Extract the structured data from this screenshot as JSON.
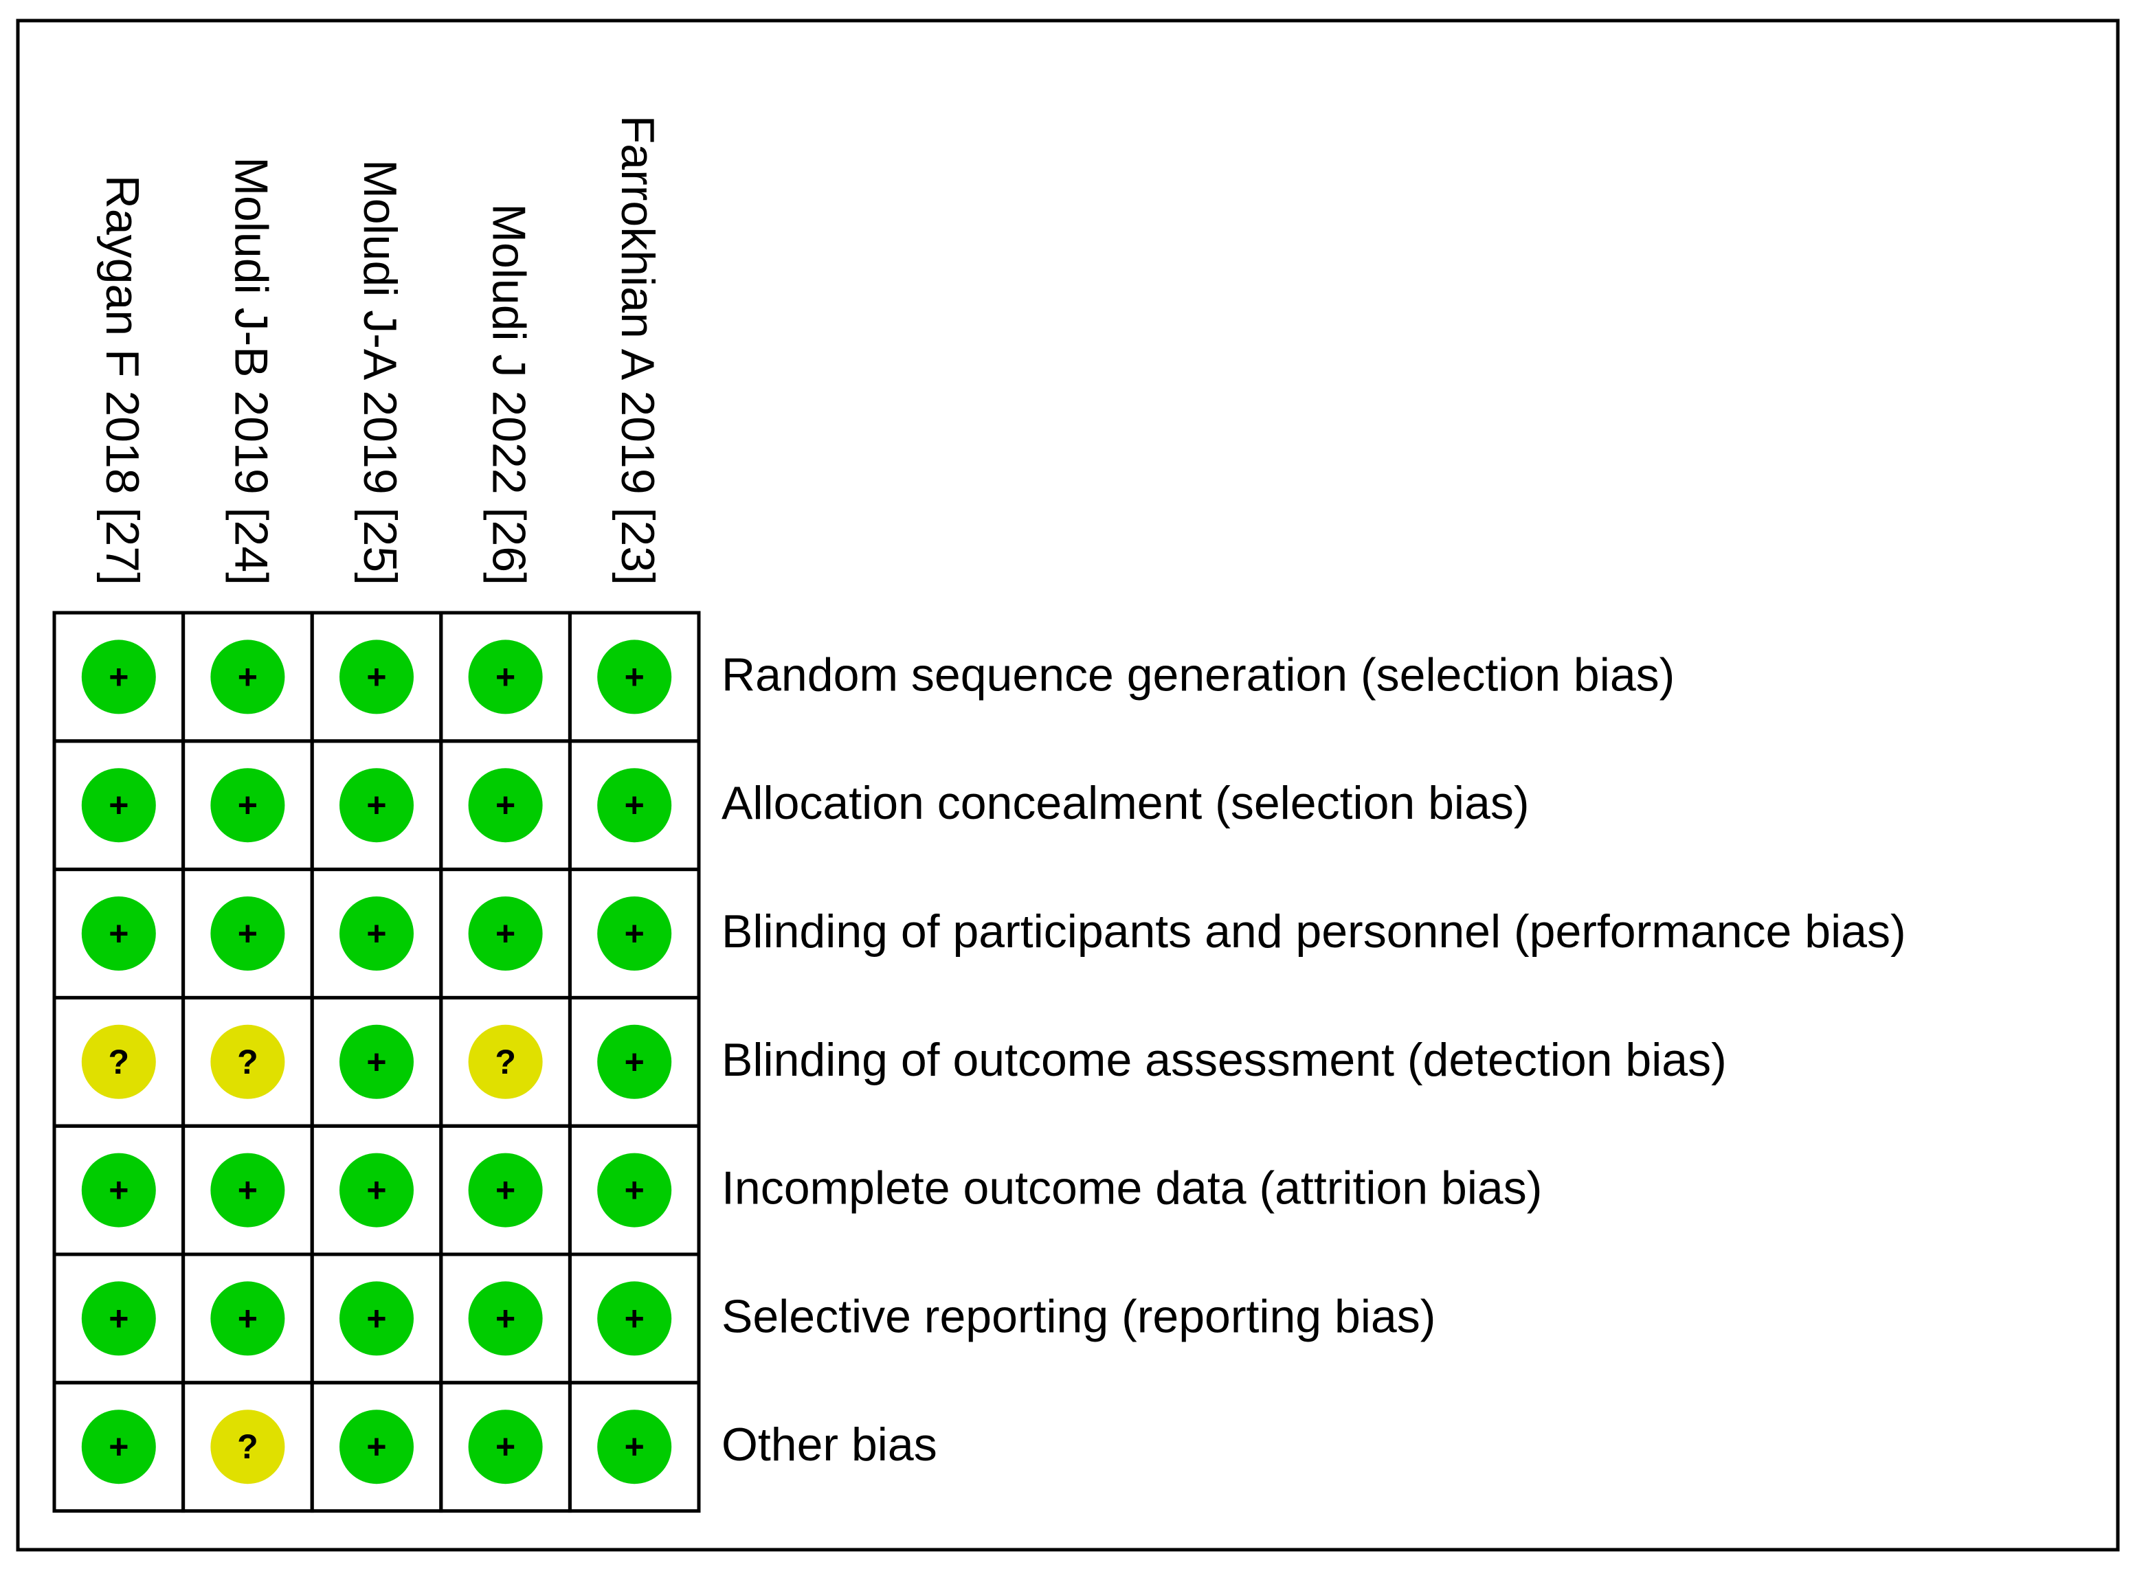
{
  "columns": [
    "Raygan F 2018 [27]",
    "Moludi J-B 2019 [24]",
    "Moludi J-A 2019 [25]",
    "Moludi J 2022 [26]",
    "Farrokhian A 2019 [23]"
  ],
  "rows": [
    {
      "label": "Random sequence generation (selection bias)",
      "cells": [
        {
          "symbol": "+",
          "color": "#00cc00"
        },
        {
          "symbol": "+",
          "color": "#00cc00"
        },
        {
          "symbol": "+",
          "color": "#00cc00"
        },
        {
          "symbol": "+",
          "color": "#00cc00"
        },
        {
          "symbol": "+",
          "color": "#00cc00"
        }
      ]
    },
    {
      "label": "Allocation concealment (selection bias)",
      "cells": [
        {
          "symbol": "+",
          "color": "#00cc00"
        },
        {
          "symbol": "+",
          "color": "#00cc00"
        },
        {
          "symbol": "+",
          "color": "#00cc00"
        },
        {
          "symbol": "+",
          "color": "#00cc00"
        },
        {
          "symbol": "+",
          "color": "#00cc00"
        }
      ]
    },
    {
      "label": "Blinding of participants and personnel (performance bias)",
      "cells": [
        {
          "symbol": "+",
          "color": "#00cc00"
        },
        {
          "symbol": "+",
          "color": "#00cc00"
        },
        {
          "symbol": "+",
          "color": "#00cc00"
        },
        {
          "symbol": "+",
          "color": "#00cc00"
        },
        {
          "symbol": "+",
          "color": "#00cc00"
        }
      ]
    },
    {
      "label": "Blinding of outcome assessment (detection bias)",
      "cells": [
        {
          "symbol": "?",
          "color": "#e0e000"
        },
        {
          "symbol": "?",
          "color": "#e0e000"
        },
        {
          "symbol": "+",
          "color": "#00cc00"
        },
        {
          "symbol": "?",
          "color": "#e0e000"
        },
        {
          "symbol": "+",
          "color": "#00cc00"
        }
      ]
    },
    {
      "label": "Incomplete outcome data (attrition bias)",
      "cells": [
        {
          "symbol": "+",
          "color": "#00cc00"
        },
        {
          "symbol": "+",
          "color": "#00cc00"
        },
        {
          "symbol": "+",
          "color": "#00cc00"
        },
        {
          "symbol": "+",
          "color": "#00cc00"
        },
        {
          "symbol": "+",
          "color": "#00cc00"
        }
      ]
    },
    {
      "label": "Selective reporting (reporting bias)",
      "cells": [
        {
          "symbol": "+",
          "color": "#00cc00"
        },
        {
          "symbol": "+",
          "color": "#00cc00"
        },
        {
          "symbol": "+",
          "color": "#00cc00"
        },
        {
          "symbol": "+",
          "color": "#00cc00"
        },
        {
          "symbol": "+",
          "color": "#00cc00"
        }
      ]
    },
    {
      "label": "Other bias",
      "cells": [
        {
          "symbol": "+",
          "color": "#00cc00"
        },
        {
          "symbol": "?",
          "color": "#e0e000"
        },
        {
          "symbol": "+",
          "color": "#00cc00"
        },
        {
          "symbol": "+",
          "color": "#00cc00"
        },
        {
          "symbol": "+",
          "color": "#00cc00"
        }
      ]
    }
  ]
}
